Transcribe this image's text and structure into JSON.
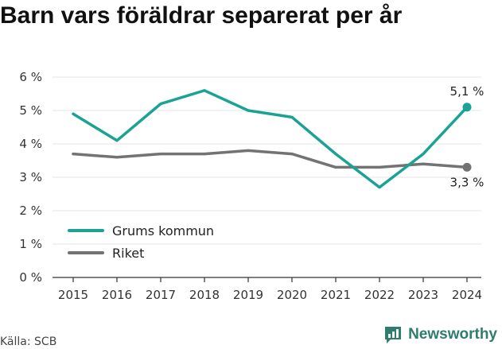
{
  "title": "Barn vars föräldrar separerat per år",
  "source": "Källa: SCB",
  "brand": {
    "name": "Newsworthy",
    "icon": "newsworthy-logo-icon"
  },
  "colors": {
    "primary": "#1aa394",
    "secondary": "#737373",
    "axis": "#333333"
  },
  "chart_data": {
    "type": "line",
    "title": "Barn vars föräldrar separerat per år",
    "xlabel": "",
    "ylabel": "",
    "x": [
      "2015",
      "2016",
      "2017",
      "2018",
      "2019",
      "2020",
      "2021",
      "2022",
      "2023",
      "2024"
    ],
    "ylim": [
      0,
      6
    ],
    "yticks": [
      "0 %",
      "1 %",
      "2 %",
      "3 %",
      "4 %",
      "5 %",
      "6 %"
    ],
    "legend_position": "bottom-left",
    "series": [
      {
        "name": "Grums kommun",
        "color": "#1aa394",
        "values": [
          4.9,
          4.1,
          5.2,
          5.6,
          5.0,
          4.8,
          3.7,
          2.7,
          3.7,
          5.1
        ],
        "end_label": "5,1 %"
      },
      {
        "name": "Riket",
        "color": "#737373",
        "values": [
          3.7,
          3.6,
          3.7,
          3.7,
          3.8,
          3.7,
          3.3,
          3.3,
          3.4,
          3.3
        ],
        "end_label": "3,3 %"
      }
    ]
  }
}
